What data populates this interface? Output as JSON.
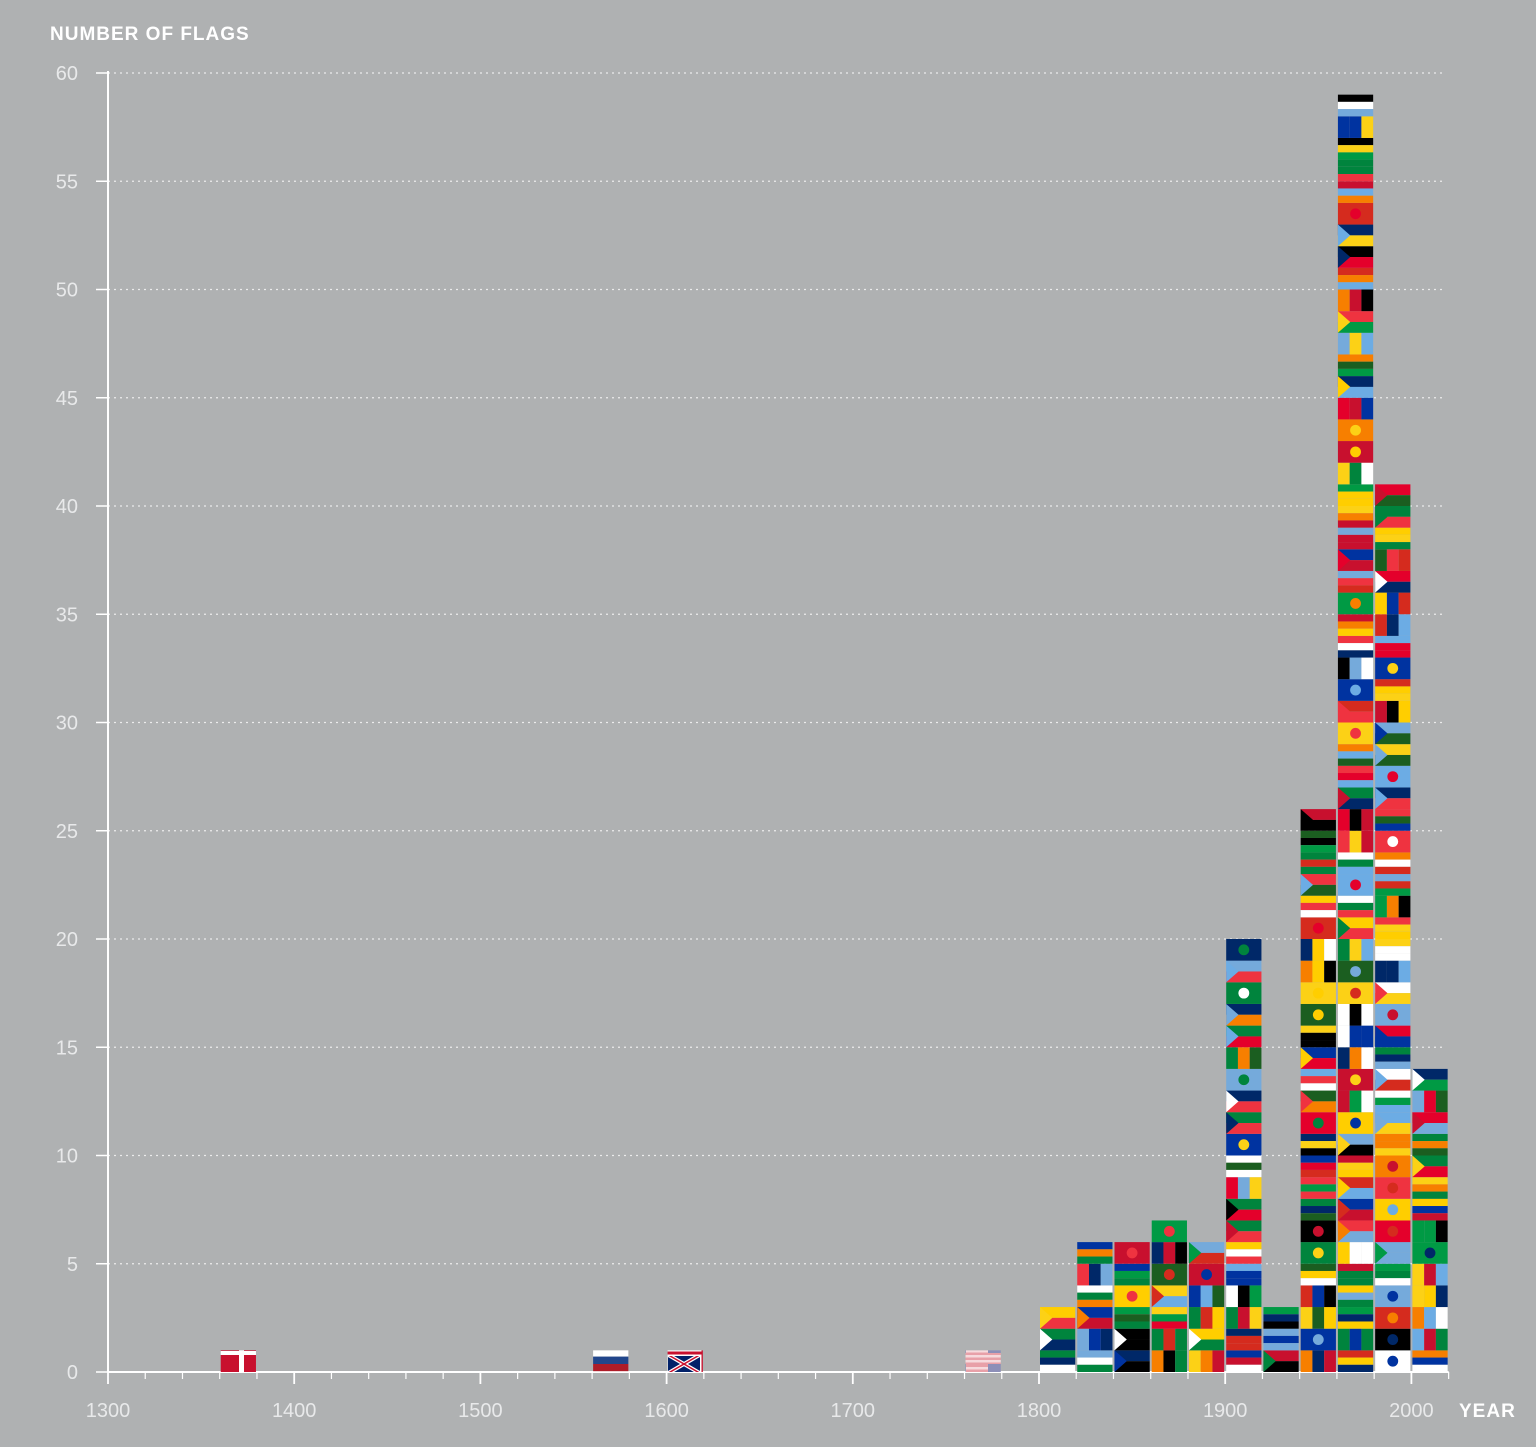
{
  "colors": {
    "background": "#afb1b2",
    "axis": "#ffffff",
    "grid": "#ffffff",
    "tick_label": "#e8e9ea",
    "flag_palette": [
      "#c8102e",
      "#ffffff",
      "#0033a0",
      "#009a44",
      "#fcd116",
      "#000000",
      "#ef3340",
      "#00843d",
      "#002868",
      "#ffce00",
      "#75aadb",
      "#e4002b",
      "#6cace4",
      "#d52b1e",
      "#1b5e20",
      "#f77f00"
    ]
  },
  "chart_data": {
    "type": "bar",
    "title": "",
    "ylabel": "NUMBER OF FLAGS",
    "xlabel": "YEAR",
    "xlim": [
      1300,
      2020
    ],
    "ylim": [
      0,
      60
    ],
    "x_ticks": [
      1300,
      1400,
      1500,
      1600,
      1700,
      1800,
      1900,
      2000
    ],
    "y_ticks": [
      0,
      5,
      10,
      15,
      20,
      25,
      30,
      35,
      40,
      45,
      50,
      55,
      60
    ],
    "grid": true,
    "bin_width": 20,
    "bars": [
      {
        "start": 1360,
        "value": 1
      },
      {
        "start": 1560,
        "value": 1
      },
      {
        "start": 1600,
        "value": 1
      },
      {
        "start": 1760,
        "value": 1
      },
      {
        "start": 1800,
        "value": 3
      },
      {
        "start": 1820,
        "value": 6
      },
      {
        "start": 1840,
        "value": 6
      },
      {
        "start": 1860,
        "value": 7
      },
      {
        "start": 1880,
        "value": 6
      },
      {
        "start": 1900,
        "value": 20
      },
      {
        "start": 1920,
        "value": 3
      },
      {
        "start": 1940,
        "value": 26
      },
      {
        "start": 1960,
        "value": 59
      },
      {
        "start": 1980,
        "value": 41
      },
      {
        "start": 2000,
        "value": 14
      }
    ]
  }
}
